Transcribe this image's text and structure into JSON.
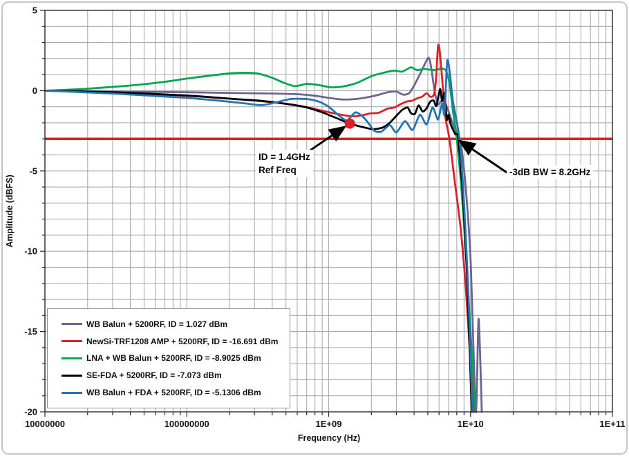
{
  "chart_data": {
    "type": "line",
    "xlabel": "Frequency (Hz)",
    "ylabel": "Amplitude (dBFS)",
    "x_scale": "log",
    "x_range_hz": [
      10000000.0,
      100000000000.0
    ],
    "y_range_db": [
      -20,
      5
    ],
    "y_minor_step_db": 1,
    "grid": true,
    "grid_color": "#ababab",
    "axis_color": "#2a2a2a",
    "x_ticks": [
      {
        "value": 10000000.0,
        "label": "10000000"
      },
      {
        "value": 100000000.0,
        "label": "100000000"
      },
      {
        "value": 1000000000.0,
        "label": "1E+09"
      },
      {
        "value": 10000000000.0,
        "label": "1E+10"
      },
      {
        "value": 100000000000.0,
        "label": "1E+11"
      }
    ],
    "y_ticks": [
      {
        "value": 5,
        "label": "5"
      },
      {
        "value": 0,
        "label": "0"
      },
      {
        "value": -5,
        "label": "-5"
      },
      {
        "value": -10,
        "label": "-10"
      },
      {
        "value": -15,
        "label": "-15"
      },
      {
        "value": -20,
        "label": "-20"
      }
    ],
    "reference_line": {
      "value_db": -3,
      "color": "#e02020"
    },
    "marker": {
      "freq_hz": 1410000000.0,
      "amplitude_db": -2.05,
      "color": "#e02020"
    },
    "legend_position": "bottom-left",
    "series": [
      {
        "key": "wb-balun-5200rf",
        "name": "WB Balun + 5200RF, ID =  1.027 dBm",
        "color": "#6e6492",
        "points": [
          [
            10000000.0,
            0
          ],
          [
            30000000.0,
            -0.05
          ],
          [
            100000000.0,
            -0.1
          ],
          [
            200000000.0,
            -0.14
          ],
          [
            400000000.0,
            -0.18
          ],
          [
            600000000.0,
            -0.22
          ],
          [
            800000000.0,
            -0.32
          ],
          [
            1000000000.0,
            -0.45
          ],
          [
            1250000000.0,
            -0.55
          ],
          [
            1550000000.0,
            -0.52
          ],
          [
            1900000000.0,
            -0.4
          ],
          [
            2200000000.0,
            -0.28
          ],
          [
            2600000000.0,
            -0.1
          ],
          [
            3000000000.0,
            -0.06
          ],
          [
            3350000000.0,
            -0.25
          ],
          [
            3700000000.0,
            -0.15
          ],
          [
            4050000000.0,
            0.4
          ],
          [
            4500000000.0,
            1.2
          ],
          [
            5050000000.0,
            2.05
          ],
          [
            5300000000.0,
            1.35
          ],
          [
            5550000000.0,
            0.1
          ],
          [
            5900000000.0,
            -0.85
          ],
          [
            6400000000.0,
            -0.55
          ],
          [
            6900000000.0,
            -1.15
          ],
          [
            7600000000.0,
            -2.2
          ],
          [
            8500000000.0,
            -3.2
          ],
          [
            9200000000.0,
            -5.8
          ],
          [
            10000000000.0,
            -10.5
          ],
          [
            10900000000.0,
            -20
          ],
          [
            11400000000.0,
            -14.2
          ],
          [
            12000000000.0,
            -20
          ]
        ]
      },
      {
        "key": "newsi-trf1208-amp-5200rf",
        "name": "NewSi-TRF1208 AMP + 5200RF, ID =  -16.691 dBm",
        "color": "#d9222a",
        "points": [
          [
            10000000.0,
            0
          ],
          [
            30000000.0,
            -0.12
          ],
          [
            100000000.0,
            -0.32
          ],
          [
            200000000.0,
            -0.5
          ],
          [
            400000000.0,
            -0.72
          ],
          [
            630000000.0,
            -0.95
          ],
          [
            900000000.0,
            -1.25
          ],
          [
            1150000000.0,
            -1.45
          ],
          [
            1450000000.0,
            -1.6
          ],
          [
            1700000000.0,
            -1.55
          ],
          [
            1950000000.0,
            -1.42
          ],
          [
            2250000000.0,
            -1.38
          ],
          [
            2600000000.0,
            -1.12
          ],
          [
            2900000000.0,
            -1.05
          ],
          [
            3200000000.0,
            -0.85
          ],
          [
            3550000000.0,
            -0.68
          ],
          [
            3900000000.0,
            -0.62
          ],
          [
            4200000000.0,
            -0.48
          ],
          [
            4550000000.0,
            -0.38
          ],
          [
            4900000000.0,
            -0.16
          ],
          [
            5200000000.0,
            -0.38
          ],
          [
            5500000000.0,
            -0.28
          ],
          [
            5700000000.0,
            0.6
          ],
          [
            5900000000.0,
            2.78
          ],
          [
            6050000000.0,
            2.55
          ],
          [
            6300000000.0,
            0.8
          ],
          [
            6600000000.0,
            -1.5
          ],
          [
            7100000000.0,
            -3
          ],
          [
            7700000000.0,
            -5.5
          ],
          [
            8500000000.0,
            -8.5
          ],
          [
            9300000000.0,
            -12.5
          ],
          [
            10500000000.0,
            -20
          ]
        ]
      },
      {
        "key": "lna-wb-balun-5200rf",
        "name": "LNA + WB Balun + 5200RF, ID =  -8.9025 dBm",
        "color": "#00a651",
        "points": [
          [
            10000000.0,
            0
          ],
          [
            20000000.0,
            0.12
          ],
          [
            40000000.0,
            0.32
          ],
          [
            70000000.0,
            0.55
          ],
          [
            100000000.0,
            0.75
          ],
          [
            150000000.0,
            0.95
          ],
          [
            220000000.0,
            1.1
          ],
          [
            310000000.0,
            1.08
          ],
          [
            400000000.0,
            0.8
          ],
          [
            480000000.0,
            0.5
          ],
          [
            580000000.0,
            0.28
          ],
          [
            700000000.0,
            0.42
          ],
          [
            850000000.0,
            0.35
          ],
          [
            1050000000.0,
            0.2
          ],
          [
            1300000000.0,
            0.28
          ],
          [
            1600000000.0,
            0.5
          ],
          [
            2000000000.0,
            0.9
          ],
          [
            2400000000.0,
            1.1
          ],
          [
            2900000000.0,
            1.25
          ],
          [
            3300000000.0,
            1.18
          ],
          [
            3800000000.0,
            1.45
          ],
          [
            4200000000.0,
            1.28
          ],
          [
            4700000000.0,
            1.35
          ],
          [
            5200000000.0,
            1.3
          ],
          [
            5700000000.0,
            1.28
          ],
          [
            6200000000.0,
            1.38
          ],
          [
            6700000000.0,
            1.25
          ],
          [
            7100000000.0,
            0.5
          ],
          [
            7500000000.0,
            -1.2
          ],
          [
            8000000000.0,
            -3
          ],
          [
            8700000000.0,
            -6.5
          ],
          [
            9400000000.0,
            -11
          ],
          [
            10800000000.0,
            -20
          ]
        ]
      },
      {
        "key": "se-fda-5200rf",
        "name": "SE-FDA + 5200RF, ID =  -7.073 dBm",
        "color": "#000000",
        "points": [
          [
            10000000.0,
            0
          ],
          [
            30000000.0,
            -0.1
          ],
          [
            100000000.0,
            -0.3
          ],
          [
            200000000.0,
            -0.5
          ],
          [
            320000000.0,
            -0.62
          ],
          [
            500000000.0,
            -0.82
          ],
          [
            700000000.0,
            -1.05
          ],
          [
            900000000.0,
            -1.35
          ],
          [
            1130000000.0,
            -1.7
          ],
          [
            1410000000.0,
            -2.05
          ],
          [
            1700000000.0,
            -2.25
          ],
          [
            2050000000.0,
            -2.4
          ],
          [
            2400000000.0,
            -2.3
          ],
          [
            2700000000.0,
            -2.0
          ],
          [
            3050000000.0,
            -1.5
          ],
          [
            3300000000.0,
            -1.2
          ],
          [
            3600000000.0,
            -1.05
          ],
          [
            3800000000.0,
            -1.4
          ],
          [
            4050000000.0,
            -1.45
          ],
          [
            4300000000.0,
            -0.92
          ],
          [
            4600000000.0,
            -1.3
          ],
          [
            4900000000.0,
            -1.1
          ],
          [
            5200000000.0,
            -0.68
          ],
          [
            5500000000.0,
            -0.62
          ],
          [
            5750000000.0,
            -0.95
          ],
          [
            6100000000.0,
            0.1
          ],
          [
            6300000000.0,
            -0.65
          ],
          [
            6550000000.0,
            -0.15
          ],
          [
            6800000000.0,
            -1.8
          ],
          [
            7000000000.0,
            -1.5
          ],
          [
            7250000000.0,
            -2.1
          ],
          [
            7800000000.0,
            -2.7
          ],
          [
            8200000000.0,
            -3
          ],
          [
            8900000000.0,
            -7
          ],
          [
            9500000000.0,
            -12
          ],
          [
            10200000000.0,
            -20
          ]
        ]
      },
      {
        "key": "wb-balun-fda-5200rf",
        "name": "WB Balun + FDA + 5200RF, ID =  -5.1306 dBm",
        "color": "#2274b5",
        "points": [
          [
            10000000.0,
            0
          ],
          [
            30000000.0,
            -0.18
          ],
          [
            100000000.0,
            -0.45
          ],
          [
            180000000.0,
            -0.65
          ],
          [
            260000000.0,
            -0.8
          ],
          [
            340000000.0,
            -0.9
          ],
          [
            430000000.0,
            -0.72
          ],
          [
            540000000.0,
            -0.52
          ],
          [
            700000000.0,
            -0.52
          ],
          [
            850000000.0,
            -0.68
          ],
          [
            1000000000.0,
            -1.0
          ],
          [
            1200000000.0,
            -1.6
          ],
          [
            1350000000.0,
            -1.85
          ],
          [
            1550000000.0,
            -1.35
          ],
          [
            1800000000.0,
            -1.75
          ],
          [
            2100000000.0,
            -2.5
          ],
          [
            2350000000.0,
            -2.55
          ],
          [
            2700000000.0,
            -2.15
          ],
          [
            3000000000.0,
            -2.6
          ],
          [
            3450000000.0,
            -1.9
          ],
          [
            3900000000.0,
            -2.45
          ],
          [
            4400000000.0,
            -1.5
          ],
          [
            4900000000.0,
            -2.1
          ],
          [
            5400000000.0,
            -1.05
          ],
          [
            5900000000.0,
            -1.8
          ],
          [
            6300000000.0,
            -0.8
          ],
          [
            6550000000.0,
            -1.45
          ],
          [
            6850000000.0,
            1.85
          ],
          [
            7150000000.0,
            1.1
          ],
          [
            7500000000.0,
            -0.6
          ],
          [
            8350000000.0,
            -3
          ],
          [
            9000000000.0,
            -7
          ],
          [
            9700000000.0,
            -13
          ],
          [
            10300000000.0,
            -20
          ]
        ]
      }
    ]
  },
  "annotations": [
    {
      "id": "ref-freq",
      "text_lines": [
        "ID = 1.4GHz",
        "Ref Freq"
      ],
      "arrow": {
        "from_hz": 690000000.0,
        "from_db": -3.9,
        "to_hz": 1300000000.0,
        "to_db": -2.25
      }
    },
    {
      "id": "bw",
      "text_lines": [
        "-3dB BW = 8.2GHz"
      ],
      "arrow": {
        "from_hz": 18400000000.0,
        "from_db": -5.15,
        "to_hz": 8380000000.0,
        "to_db": -3.12
      }
    }
  ],
  "frame": {
    "border_color": "#c6c6c6",
    "background": "#ffffff"
  }
}
